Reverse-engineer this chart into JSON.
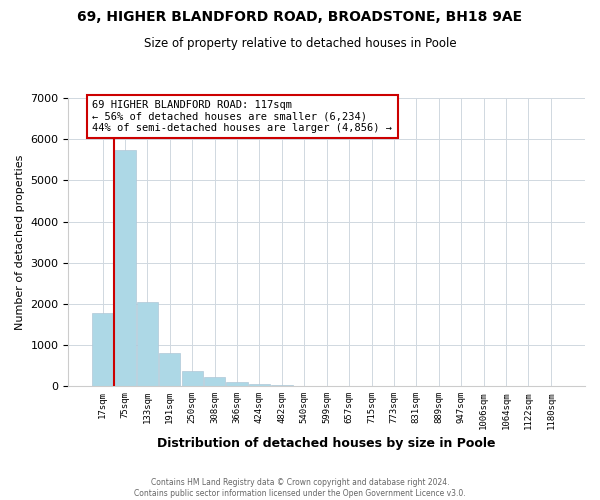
{
  "title_line1": "69, HIGHER BLANDFORD ROAD, BROADSTONE, BH18 9AE",
  "title_line2": "Size of property relative to detached houses in Poole",
  "xlabel": "Distribution of detached houses by size in Poole",
  "ylabel": "Number of detached properties",
  "bar_labels": [
    "17sqm",
    "75sqm",
    "133sqm",
    "191sqm",
    "250sqm",
    "308sqm",
    "366sqm",
    "424sqm",
    "482sqm",
    "540sqm",
    "599sqm",
    "657sqm",
    "715sqm",
    "773sqm",
    "831sqm",
    "889sqm",
    "947sqm",
    "1006sqm",
    "1064sqm",
    "1122sqm",
    "1180sqm"
  ],
  "bar_values": [
    1780,
    5740,
    2050,
    810,
    370,
    230,
    110,
    60,
    30,
    15,
    8,
    3,
    2,
    0,
    0,
    0,
    0,
    0,
    0,
    0,
    0
  ],
  "bar_color": "#add8e6",
  "bar_edge_color": "#b0c8d8",
  "property_line_color": "#cc0000",
  "property_line_x": 0.5,
  "annotation_line1": "69 HIGHER BLANDFORD ROAD: 117sqm",
  "annotation_line2": "← 56% of detached houses are smaller (6,234)",
  "annotation_line3": "44% of semi-detached houses are larger (4,856) →",
  "annotation_box_color": "#cc0000",
  "ylim": [
    0,
    7000
  ],
  "yticks": [
    0,
    1000,
    2000,
    3000,
    4000,
    5000,
    6000,
    7000
  ],
  "footer_line1": "Contains HM Land Registry data © Crown copyright and database right 2024.",
  "footer_line2": "Contains public sector information licensed under the Open Government Licence v3.0.",
  "background_color": "#ffffff",
  "grid_color": "#d0d8e0"
}
